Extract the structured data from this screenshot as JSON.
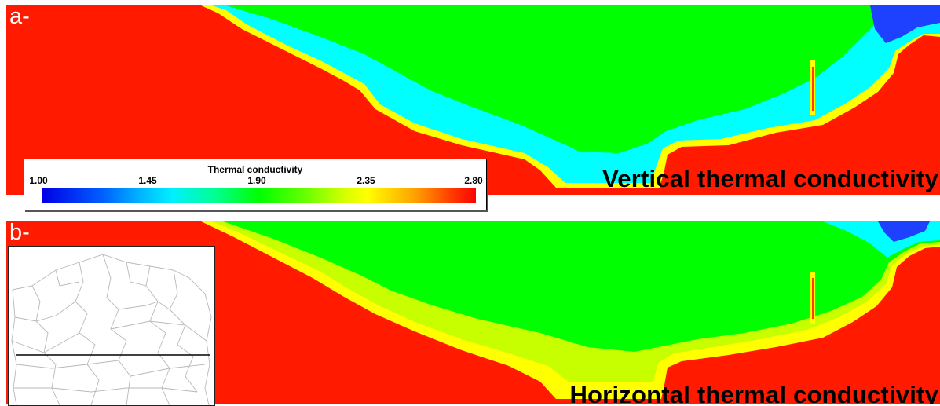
{
  "panels": [
    {
      "letter": "a-",
      "title": "Vertical thermal conductivity"
    },
    {
      "letter": "b-",
      "title": "Horizontal thermal conductivity"
    }
  ],
  "colorbar": {
    "title": "Thermal conductivity",
    "ticks": [
      "1.00",
      "1.45",
      "1.90",
      "2.35",
      "2.80"
    ],
    "min": 1.0,
    "max": 2.8,
    "colormap": [
      "#0000e6",
      "#00f0ff",
      "#00ff00",
      "#ffff00",
      "#ff0000"
    ]
  },
  "colors": {
    "low": "#1e40ff",
    "mid_low": "#00ffff",
    "mid": "#00ff00",
    "mid_high": "#ffff00",
    "high": "#ff1a00"
  },
  "inset": {
    "icon": "region-map-icon"
  }
}
